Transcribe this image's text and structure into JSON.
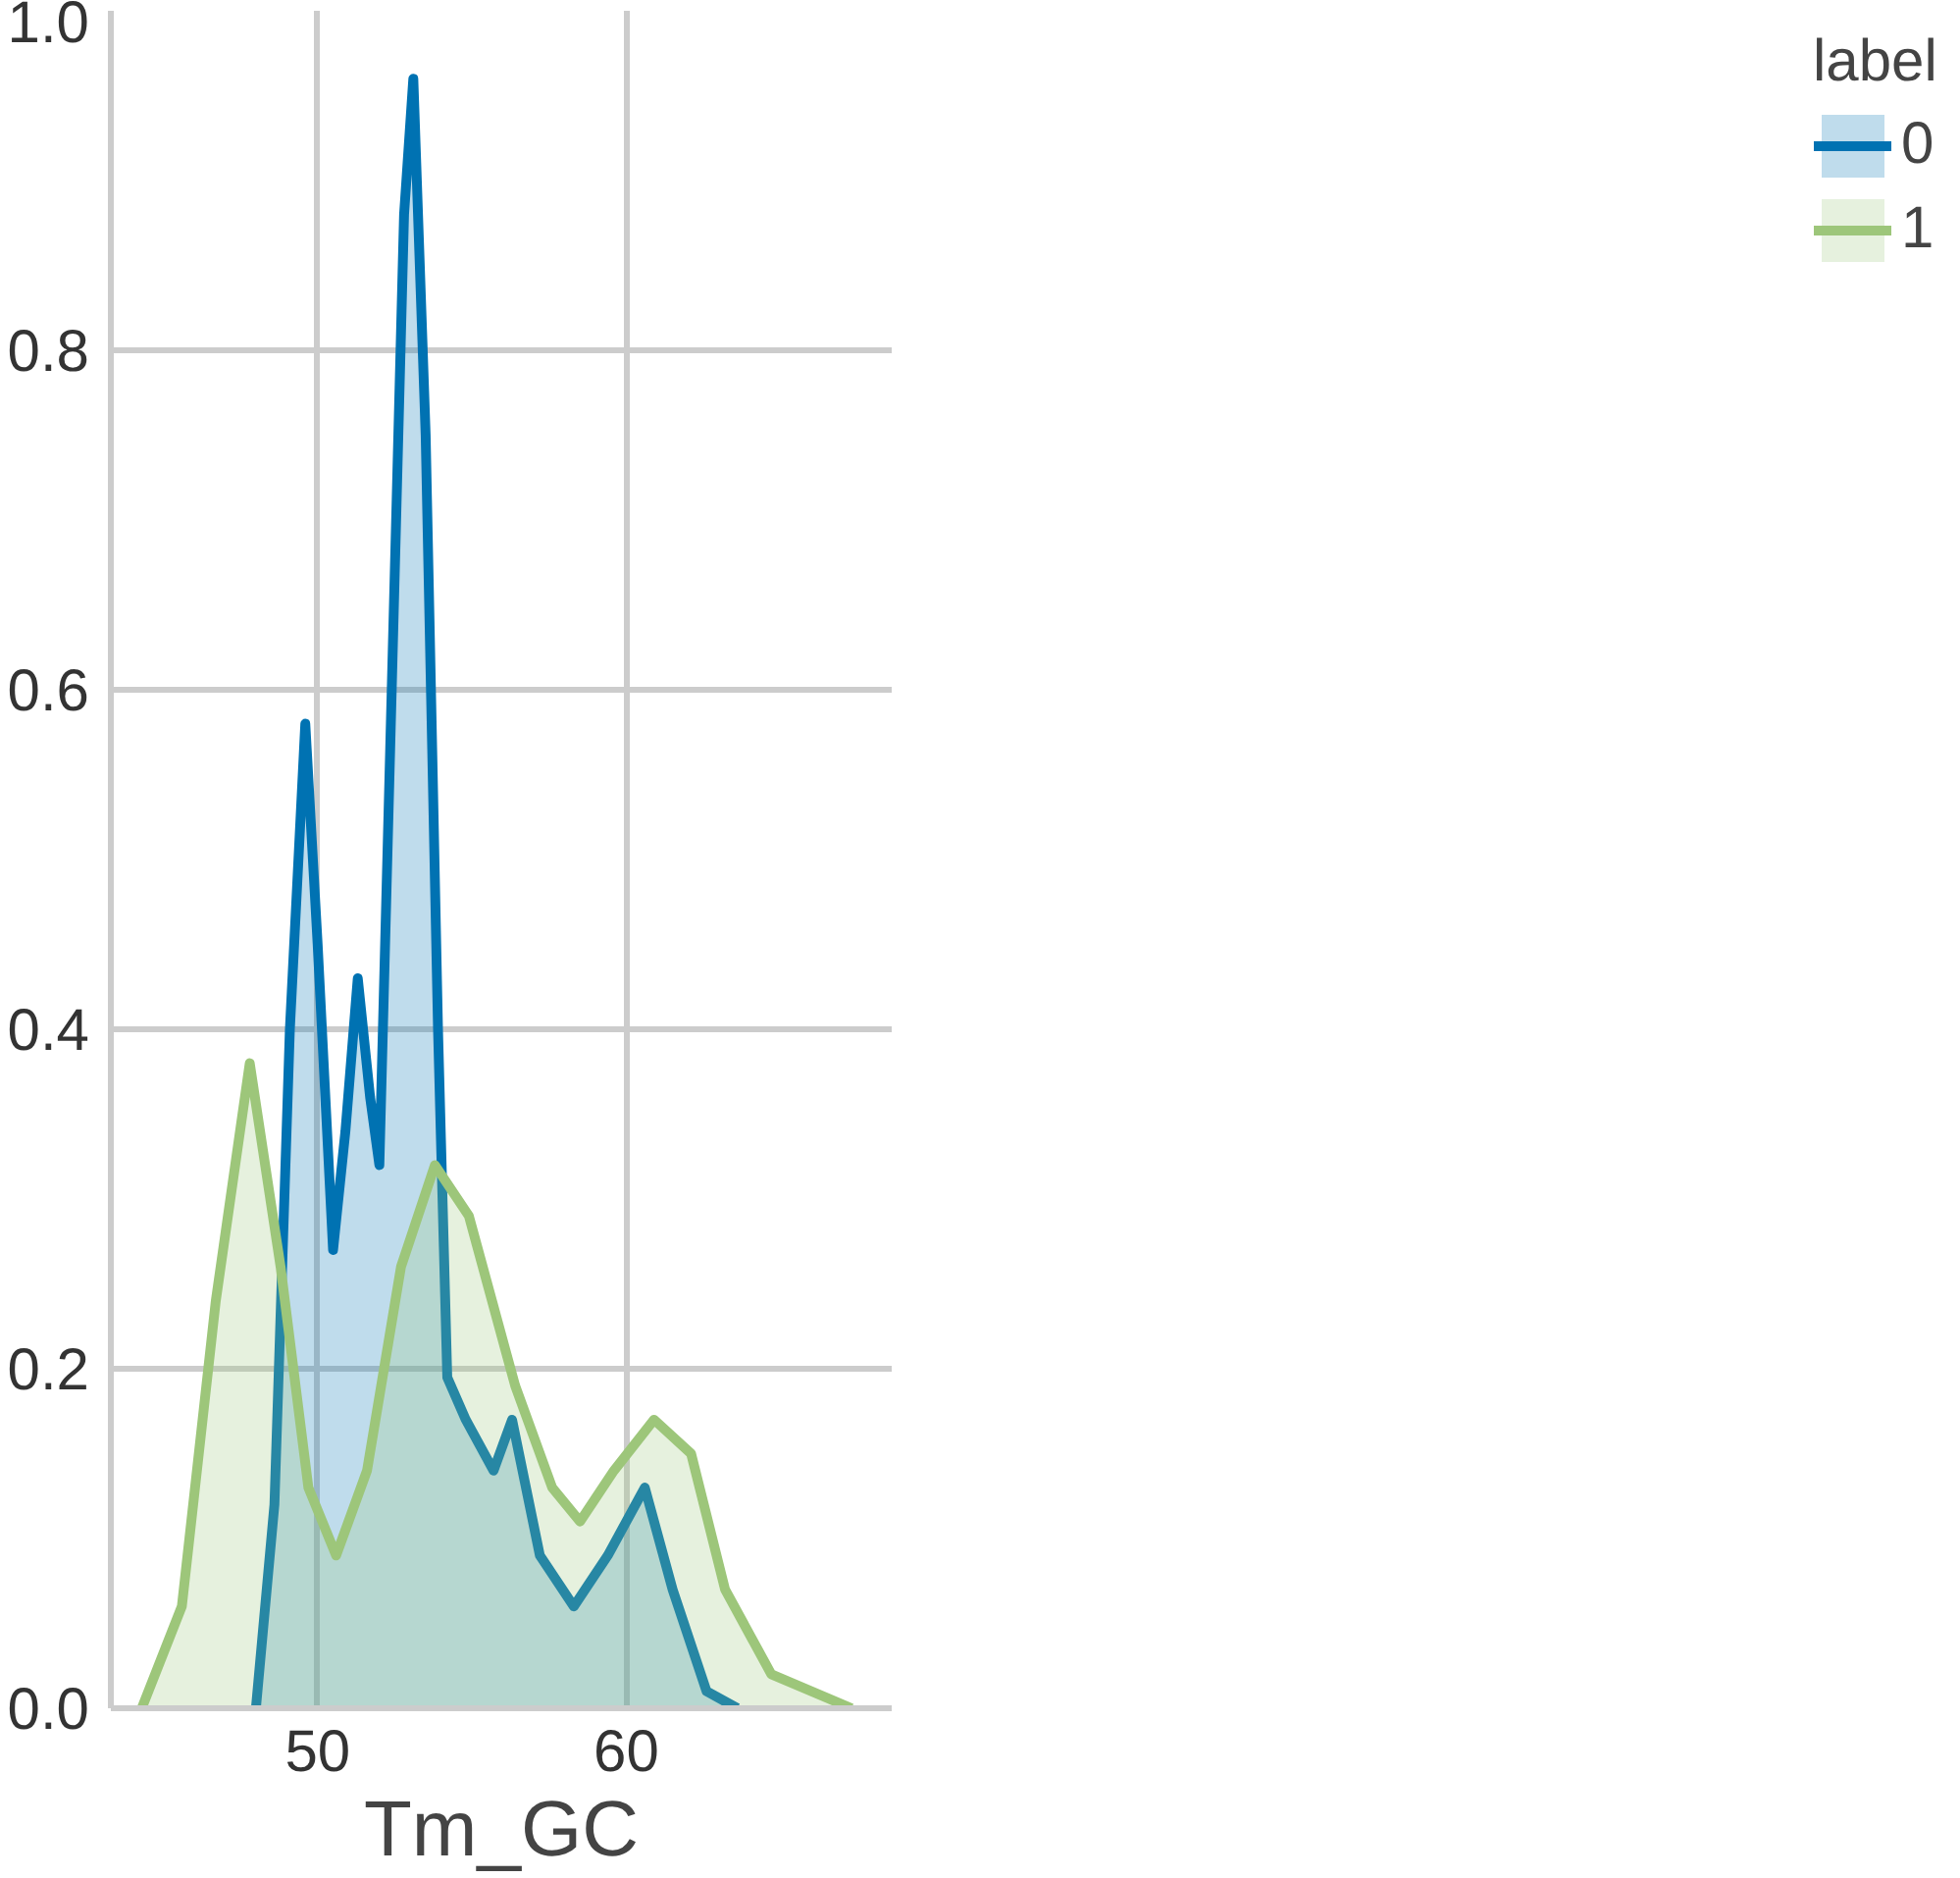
{
  "chart_data": {
    "type": "area",
    "xlabel": "Tm_GC",
    "legend_title": "label",
    "legend": "right",
    "grid": true,
    "xlim": [
      43.3,
      68.6
    ],
    "ylim": [
      0,
      1.0
    ],
    "xticks": [
      50,
      60
    ],
    "yticks": [
      {
        "value": 0,
        "label": "0.0"
      },
      {
        "value": 0.2,
        "label": "0.2"
      },
      {
        "value": 0.4,
        "label": "0.4"
      },
      {
        "value": 0.6,
        "label": "0.6"
      },
      {
        "value": 0.8,
        "label": "0.8"
      },
      {
        "value": 1.0,
        "label": "1.0"
      }
    ],
    "series": [
      {
        "name": "0",
        "color": "#0072b2",
        "x": [
          48.0,
          48.6,
          49.1,
          49.6,
          50.0,
          50.5,
          50.9,
          51.3,
          51.7,
          52.0,
          52.4,
          52.8,
          53.1,
          53.5,
          53.9,
          54.2,
          54.8,
          55.7,
          56.3,
          57.2,
          58.3,
          59.4,
          60.6,
          61.5,
          62.6,
          63.6
        ],
        "values": [
          0,
          0.12,
          0.4,
          0.58,
          0.45,
          0.27,
          0.34,
          0.43,
          0.36,
          0.32,
          0.6,
          0.88,
          0.96,
          0.75,
          0.4,
          0.195,
          0.17,
          0.14,
          0.17,
          0.09,
          0.06,
          0.09,
          0.13,
          0.07,
          0.01,
          0
        ]
      },
      {
        "name": "1",
        "color": "#9dc67a",
        "x": [
          44.3,
          45.6,
          46.7,
          47.8,
          48.8,
          49.7,
          50.6,
          51.6,
          52.7,
          53.8,
          54.9,
          56.4,
          57.6,
          58.5,
          59.6,
          60.9,
          62.1,
          63.2,
          64.7,
          67.3
        ],
        "values": [
          0,
          0.06,
          0.24,
          0.38,
          0.26,
          0.13,
          0.09,
          0.14,
          0.26,
          0.32,
          0.29,
          0.19,
          0.13,
          0.11,
          0.14,
          0.17,
          0.15,
          0.07,
          0.02,
          0
        ]
      }
    ]
  }
}
